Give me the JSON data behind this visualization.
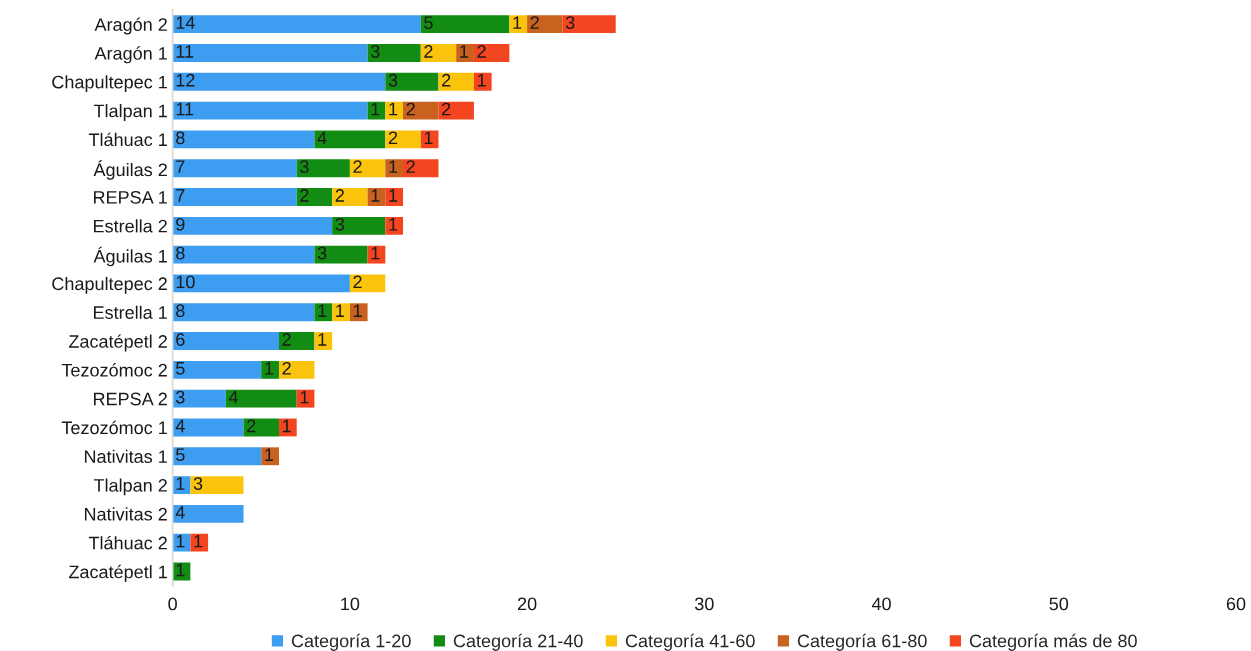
{
  "chart_data": {
    "type": "bar",
    "orientation": "horizontal",
    "stacked": true,
    "data_labels": true,
    "grid": false,
    "legend": "bottom",
    "categories": [
      "Aragón 2",
      "Aragón 1",
      "Chapultepec 1",
      "Tlalpan 1",
      "Tláhuac 1",
      "Águilas 2",
      "REPSA 1",
      "Estrella 2",
      "Águilas 1",
      "Chapultepec 2",
      "Estrella 1",
      "Zacatépetl 2",
      "Tezozómoc 2",
      "REPSA 2",
      "Tezozómoc 1",
      "Nativitas 1",
      "Tlalpan 2",
      "Nativitas 2",
      "Tláhuac 2",
      "Zacatépetl 1"
    ],
    "xlim": [
      0,
      60
    ],
    "xticks": [
      0,
      10,
      20,
      30,
      40,
      50,
      60
    ],
    "series": [
      {
        "name": "Categoría 1-20",
        "color": "#3d9df0",
        "values": [
          14,
          11,
          12,
          11,
          8,
          7,
          7,
          9,
          8,
          10,
          8,
          6,
          5,
          3,
          4,
          5,
          1,
          4,
          1,
          null
        ]
      },
      {
        "name": "Categoría 21-40",
        "color": "#138c13",
        "values": [
          5,
          3,
          3,
          1,
          4,
          3,
          2,
          3,
          3,
          null,
          1,
          2,
          1,
          4,
          2,
          null,
          null,
          null,
          null,
          1
        ]
      },
      {
        "name": "Categoría 41-60",
        "color": "#fbc40c",
        "values": [
          1,
          2,
          2,
          1,
          2,
          2,
          2,
          null,
          null,
          2,
          1,
          1,
          2,
          null,
          null,
          null,
          3,
          null,
          null,
          null
        ]
      },
      {
        "name": "Categoría 61-80",
        "color": "#c8621e",
        "values": [
          2,
          1,
          null,
          2,
          null,
          1,
          1,
          null,
          null,
          null,
          1,
          null,
          null,
          null,
          null,
          1,
          null,
          null,
          null,
          null
        ]
      },
      {
        "name": "Categoría más de 80",
        "color": "#f44521",
        "values": [
          3,
          2,
          1,
          2,
          1,
          2,
          1,
          1,
          1,
          null,
          null,
          null,
          null,
          1,
          1,
          null,
          null,
          null,
          1,
          null
        ]
      }
    ]
  }
}
